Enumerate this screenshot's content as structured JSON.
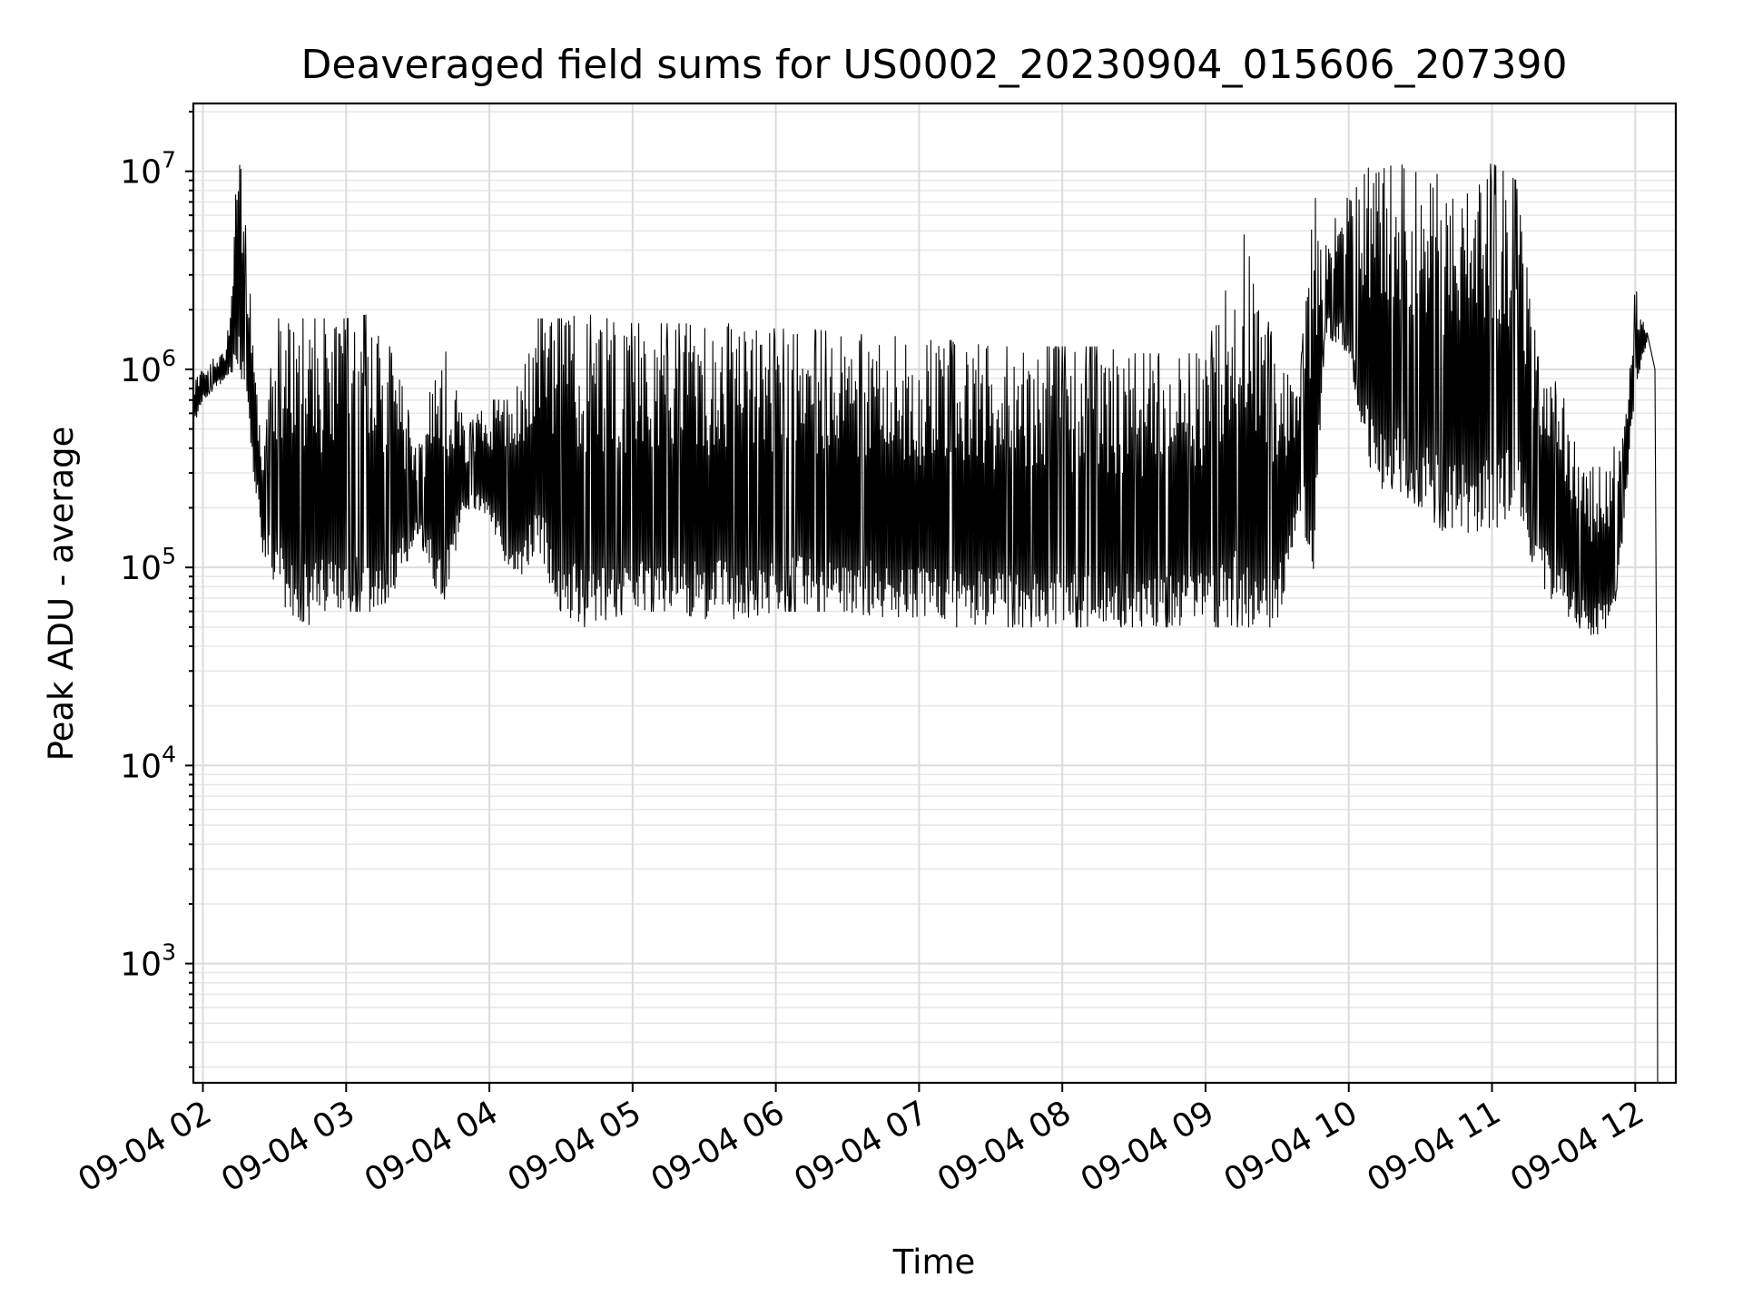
{
  "chart_data": {
    "type": "line",
    "title": "Deaveraged field sums for US0002_20230904_015606_207390",
    "xlabel": "Time",
    "ylabel": "Peak ADU - average",
    "yscale": "log",
    "ylim": [
      250,
      22000000
    ],
    "xlim": [
      "2023-09-04 01:56",
      "2023-09-04 12:17"
    ],
    "grid": true,
    "x_ticks": [
      "09-04 02",
      "09-04 03",
      "09-04 04",
      "09-04 05",
      "09-04 06",
      "09-04 07",
      "09-04 08",
      "09-04 09",
      "09-04 10",
      "09-04 11",
      "09-04 12"
    ],
    "y_ticks": [
      {
        "value": 1000,
        "base": "10",
        "exp": "3"
      },
      {
        "value": 10000,
        "base": "10",
        "exp": "4"
      },
      {
        "value": 100000,
        "base": "10",
        "exp": "5"
      },
      {
        "value": 1000000,
        "base": "10",
        "exp": "6"
      },
      {
        "value": 10000000,
        "base": "10",
        "exp": "7"
      }
    ],
    "series": [
      {
        "color": "#000000",
        "x": [
          "2023-09-04 01:56",
          "2023-09-04 02:00",
          "2023-09-04 02:05",
          "2023-09-04 02:10",
          "2023-09-04 02:15",
          "2023-09-04 02:20",
          "2023-09-04 02:25",
          "2023-09-04 02:30",
          "2023-09-04 02:35",
          "2023-09-04 02:40",
          "2023-09-04 02:45",
          "2023-09-04 02:50",
          "2023-09-04 03:00",
          "2023-09-04 03:10",
          "2023-09-04 03:20",
          "2023-09-04 03:30",
          "2023-09-04 03:40",
          "2023-09-04 03:50",
          "2023-09-04 04:00",
          "2023-09-04 04:10",
          "2023-09-04 04:20",
          "2023-09-04 04:30",
          "2023-09-04 04:40",
          "2023-09-04 04:50",
          "2023-09-04 05:00",
          "2023-09-04 05:15",
          "2023-09-04 05:30",
          "2023-09-04 05:45",
          "2023-09-04 06:00",
          "2023-09-04 06:15",
          "2023-09-04 06:30",
          "2023-09-04 06:45",
          "2023-09-04 07:00",
          "2023-09-04 07:15",
          "2023-09-04 07:30",
          "2023-09-04 07:45",
          "2023-09-04 08:00",
          "2023-09-04 08:15",
          "2023-09-04 08:30",
          "2023-09-04 08:45",
          "2023-09-04 09:00",
          "2023-09-04 09:15",
          "2023-09-04 09:30",
          "2023-09-04 09:40",
          "2023-09-04 09:45",
          "2023-09-04 09:50",
          "2023-09-04 10:00",
          "2023-09-04 10:10",
          "2023-09-04 10:20",
          "2023-09-04 10:30",
          "2023-09-04 10:40",
          "2023-09-04 10:50",
          "2023-09-04 11:00",
          "2023-09-04 11:10",
          "2023-09-04 11:20",
          "2023-09-04 11:30",
          "2023-09-04 11:40",
          "2023-09-04 11:50",
          "2023-09-04 11:55",
          "2023-09-04 12:00",
          "2023-09-04 12:05",
          "2023-09-04 12:09"
        ],
        "lo": [
          500000,
          700000,
          800000,
          900000,
          900000,
          400000,
          120000,
          80000,
          60000,
          55000,
          50000,
          55000,
          60000,
          60000,
          70000,
          150000,
          60000,
          200000,
          180000,
          80000,
          120000,
          60000,
          50000,
          55000,
          60000,
          60000,
          55000,
          55000,
          60000,
          60000,
          60000,
          55000,
          55000,
          50000,
          50000,
          50000,
          50000,
          50000,
          50000,
          50000,
          50000,
          50000,
          50000,
          200000,
          80000,
          1500000,
          1200000,
          250000,
          250000,
          200000,
          150000,
          150000,
          150000,
          200000,
          80000,
          60000,
          45000,
          45000,
          150000,
          800000,
          1400000,
          250
        ],
        "hi": [
          900000,
          1000000,
          1200000,
          1300000,
          14000000,
          2600000,
          300000,
          1800000,
          1800000,
          1800000,
          1800000,
          1800000,
          1800000,
          1900000,
          1200000,
          400000,
          1600000,
          500000,
          700000,
          700000,
          1800000,
          1800000,
          1900000,
          1800000,
          1700000,
          1700000,
          1700000,
          1700000,
          1600000,
          1600000,
          1500000,
          1500000,
          1400000,
          1400000,
          1300000,
          1300000,
          1300000,
          1300000,
          1200000,
          1200000,
          1200000,
          5500000,
          1200000,
          1100000,
          8500000,
          4500000,
          8000000,
          11000000,
          11000000,
          10000000,
          9500000,
          9000000,
          11000000,
          9000000,
          1000000,
          800000,
          300000,
          400000,
          450000,
          2600000,
          1600000,
          1600000
        ]
      }
    ]
  }
}
